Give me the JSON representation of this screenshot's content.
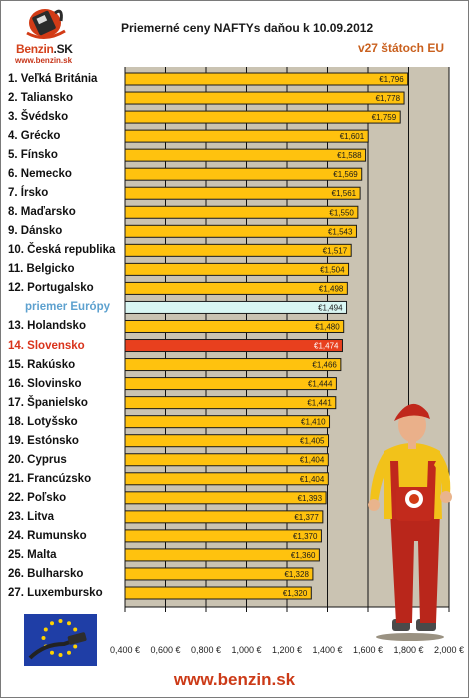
{
  "header": {
    "title": "Priemerné ceny NAFTYs daňou k 10.09.2012",
    "subtitle": "v27 štátoch EU",
    "logo_name": "Benzin",
    "logo_sk": ".SK",
    "logo_url": "www.benzin.sk"
  },
  "footer": {
    "url": "www.benzin.sk"
  },
  "colors": {
    "bar": "#ffc20e",
    "bar_highlight": "#e8401e",
    "bar_reference": "#d9f6f3",
    "plot_background": "#cac3b2",
    "footer_text": "#cc3a17",
    "label_highlight": "#d9331b",
    "label_reference": "#5da1cf"
  },
  "icons": {
    "logo": "fuel-pump-logo-icon",
    "mascot": "mechanic-mascot-icon",
    "flag": "eu-flag-fuel-nozzle-icon"
  },
  "chart_data": {
    "type": "bar",
    "orientation": "horizontal",
    "title": "Priemerné ceny NAFTYs daňou k 10.09.2012",
    "subtitle": "v27 štátoch EU",
    "xlim": [
      0.4,
      2.0
    ],
    "grid": true,
    "x_ticks": [
      "0,400 €",
      "0,600 €",
      "0,800 €",
      "1,000 €",
      "1,200 €",
      "1,400 €",
      "1,600 €",
      "1,800 €",
      "2,000 €"
    ],
    "categories": [
      "1. Veľká Británia",
      "2. Taliansko",
      "3. Švédsko",
      "4. Grécko",
      "5. Fínsko",
      "6. Nemecko",
      "7. Írsko",
      "8. Maďarsko",
      "9. Dánsko",
      "10. Česká republika",
      "11. Belgicko",
      "12. Portugalsko",
      "priemer Európy",
      "13. Holandsko",
      "14. Slovensko",
      "15. Rakúsko",
      "16. Slovinsko",
      "17. Španielsko",
      "18. Lotyšsko",
      "19. Estónsko",
      "20. Cyprus",
      "21. Francúzsko",
      "22. Poľsko",
      "23. Litva",
      "24. Rumunsko",
      "25. Malta",
      "26. Bulharsko",
      "27. Luxembursko"
    ],
    "values": [
      1.796,
      1.778,
      1.759,
      1.601,
      1.588,
      1.569,
      1.561,
      1.55,
      1.543,
      1.517,
      1.504,
      1.498,
      1.494,
      1.48,
      1.474,
      1.466,
      1.444,
      1.441,
      1.41,
      1.405,
      1.404,
      1.404,
      1.393,
      1.377,
      1.37,
      1.36,
      1.328,
      1.32
    ],
    "value_labels": [
      "€1,796",
      "€1,778",
      "€1,759",
      "€1,601",
      "€1,588",
      "€1,569",
      "€1,561",
      "€1,550",
      "€1,543",
      "€1,517",
      "€1,504",
      "€1,498",
      "€1,494",
      "€1,480",
      "€1,474",
      "€1,466",
      "€1,444",
      "€1,441",
      "€1,410",
      "€1,405",
      "€1,404",
      "€1,404",
      "€1,393",
      "€1,377",
      "€1,370",
      "€1,360",
      "€1,328",
      "€1,320"
    ],
    "highlight_index": 14,
    "reference_index": 12
  }
}
